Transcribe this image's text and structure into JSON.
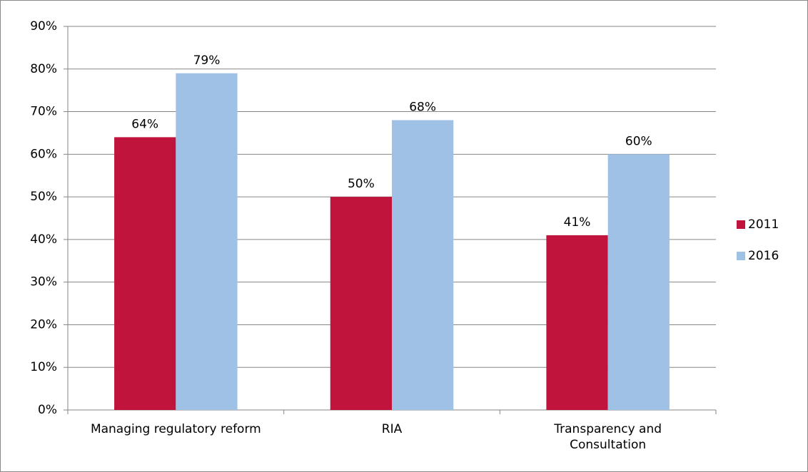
{
  "chart_data": {
    "type": "bar",
    "categories": [
      "Managing regulatory reform",
      "RIA",
      "Transparency and Consultation"
    ],
    "series": [
      {
        "name": "2011",
        "color": "#c0143c",
        "values": [
          64,
          50,
          41
        ],
        "value_labels": [
          "64%",
          "50%",
          "41%"
        ]
      },
      {
        "name": "2016",
        "color": "#9fc1e6",
        "values": [
          79,
          68,
          60
        ],
        "value_labels": [
          "79%",
          "68%",
          "60%"
        ]
      }
    ],
    "ylim": [
      0,
      90
    ],
    "yticks": [
      {
        "value": 0,
        "label": "0%"
      },
      {
        "value": 10,
        "label": "10%"
      },
      {
        "value": 20,
        "label": "20%"
      },
      {
        "value": 30,
        "label": "30%"
      },
      {
        "value": 40,
        "label": "40%"
      },
      {
        "value": 50,
        "label": "50%"
      },
      {
        "value": 60,
        "label": "60%"
      },
      {
        "value": 70,
        "label": "70%"
      },
      {
        "value": 80,
        "label": "80%"
      },
      {
        "value": 90,
        "label": "90%"
      }
    ],
    "grid": true,
    "legend": "right"
  }
}
